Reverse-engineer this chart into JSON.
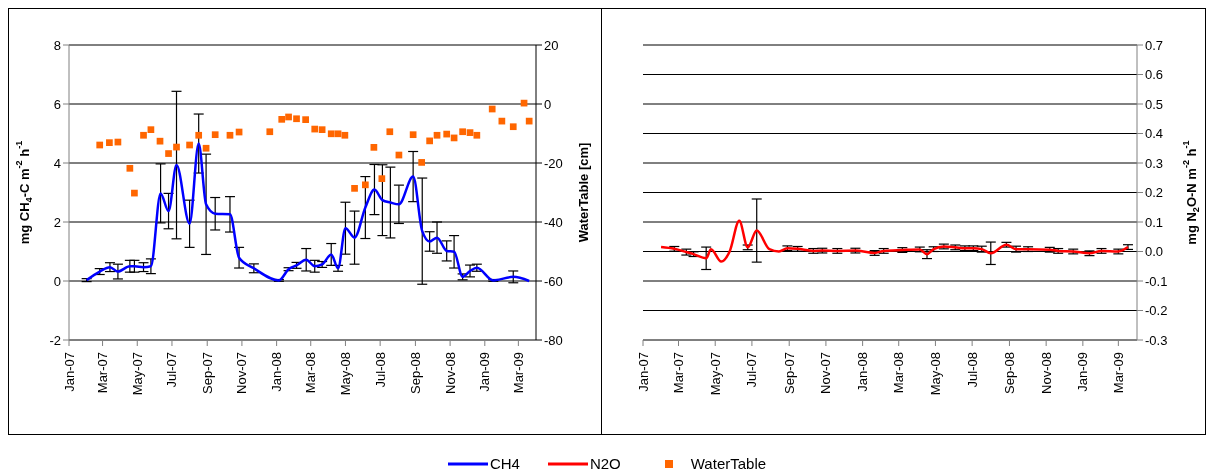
{
  "chart_data": [
    {
      "type": "line",
      "ylabel": "mg CH$_{4}$-C m$^{-2}$ h$^{-1}$",
      "y2label": "WaterTable [cm]",
      "xlim": [
        "2007-01-01",
        "2009-04-01"
      ],
      "xticks": [
        {
          "value": "2007-01-01",
          "label": "Jan-07"
        },
        {
          "value": "2007-03-01",
          "label": "Mar-07"
        },
        {
          "value": "2007-05-01",
          "label": "May-07"
        },
        {
          "value": "2007-07-01",
          "label": "Jul-07"
        },
        {
          "value": "2007-09-01",
          "label": "Sep-07"
        },
        {
          "value": "2007-11-01",
          "label": "Nov-07"
        },
        {
          "value": "2008-01-01",
          "label": "Jan-08"
        },
        {
          "value": "2008-03-01",
          "label": "Mar-08"
        },
        {
          "value": "2008-05-01",
          "label": "May-08"
        },
        {
          "value": "2008-07-01",
          "label": "Jul-08"
        },
        {
          "value": "2008-09-01",
          "label": "Sep-08"
        },
        {
          "value": "2008-11-01",
          "label": "Nov-08"
        },
        {
          "value": "2009-01-01",
          "label": "Jan-09"
        },
        {
          "value": "2009-03-01",
          "label": "Mar-09"
        }
      ],
      "ylim": [
        -2,
        8
      ],
      "yticks": [
        -2,
        0,
        2,
        4,
        6,
        8
      ],
      "y2lim": [
        -80,
        20
      ],
      "y2ticks": [
        -80,
        -60,
        -40,
        -20,
        0,
        20
      ],
      "grid": "y",
      "legend": "bottom",
      "series": [
        {
          "name": "CH4",
          "type": "line",
          "color": "#0000ff",
          "marker": "none",
          "x": [
            "2007-02-01",
            "2007-02-24",
            "2007-03-14",
            "2007-03-28",
            "2007-04-18",
            "2007-04-26",
            "2007-05-12",
            "2007-05-25",
            "2007-06-11",
            "2007-06-25",
            "2007-07-09",
            "2007-08-01",
            "2007-08-17",
            "2007-08-30",
            "2007-09-15",
            "2007-10-11",
            "2007-10-27",
            "2007-11-22",
            "2008-01-05",
            "2008-01-22",
            "2008-02-05",
            "2008-02-22",
            "2008-03-08",
            "2008-03-21",
            "2008-04-06",
            "2008-04-18",
            "2008-05-01",
            "2008-05-17",
            "2008-06-05",
            "2008-06-21",
            "2008-07-05",
            "2008-07-19",
            "2008-08-03",
            "2008-08-28",
            "2008-09-13",
            "2008-09-26",
            "2008-10-09",
            "2008-10-26",
            "2008-11-08",
            "2008-11-23",
            "2008-12-06",
            "2008-12-18",
            "2009-01-16",
            "2009-02-20",
            "2009-03-20"
          ],
          "values": [
            0.03,
            0.32,
            0.47,
            0.32,
            0.5,
            0.5,
            0.47,
            0.5,
            2.97,
            2.37,
            3.93,
            1.94,
            4.66,
            2.6,
            2.28,
            2.26,
            0.79,
            0.43,
            0.02,
            0.4,
            0.53,
            0.72,
            0.5,
            0.56,
            0.9,
            0.43,
            1.79,
            1.47,
            2.49,
            3.1,
            2.74,
            2.66,
            2.6,
            3.54,
            1.69,
            1.34,
            1.47,
            1.02,
            0.99,
            0.14,
            0.34,
            0.45,
            0.02,
            0.14,
            0
          ],
          "errors": [
            0.05,
            0.1,
            0.15,
            0.25,
            0.2,
            0.2,
            0.15,
            0.25,
            1.0,
            0.6,
            2.5,
            0.8,
            1.0,
            1.7,
            0.55,
            0.6,
            0.35,
            0.15,
            0.03,
            0.05,
            0.1,
            0.38,
            0.2,
            0.1,
            0.37,
            0.1,
            0.88,
            0.9,
            1.05,
            0.85,
            1.2,
            1.2,
            0.65,
            0.85,
            1.8,
            0.33,
            0.53,
            0.34,
            0.55,
            0.1,
            0.2,
            0.12,
            0.03,
            0.2,
            null
          ]
        },
        {
          "name": "WaterTable",
          "type": "scatter",
          "axis": "y2",
          "color": "#ff6600",
          "marker": "square",
          "x": [
            "2007-02-24",
            "2007-03-13",
            "2007-03-28",
            "2007-04-18",
            "2007-04-26",
            "2007-05-12",
            "2007-05-25",
            "2007-06-10",
            "2007-06-25",
            "2007-07-09",
            "2007-08-01",
            "2007-08-17",
            "2007-08-30",
            "2007-09-15",
            "2007-10-11",
            "2007-10-27",
            "2007-12-20",
            "2008-01-10",
            "2008-01-22",
            "2008-02-05",
            "2008-02-21",
            "2008-03-08",
            "2008-03-21",
            "2008-04-06",
            "2008-04-18",
            "2008-04-30",
            "2008-05-17",
            "2008-06-05",
            "2008-06-20",
            "2008-07-04",
            "2008-07-18",
            "2008-08-03",
            "2008-08-28",
            "2008-09-12",
            "2008-09-26",
            "2008-10-09",
            "2008-10-26",
            "2008-11-08",
            "2008-11-23",
            "2008-12-06",
            "2008-12-18",
            "2009-01-14",
            "2009-01-31",
            "2009-02-20",
            "2009-03-11",
            "2009-03-20"
          ],
          "values": [
            -13.9,
            -13.1,
            -12.9,
            -21.8,
            -30.2,
            -10.6,
            -8.7,
            -12.6,
            -16.8,
            -14.6,
            -13.9,
            -10.6,
            -15.0,
            -10.4,
            -10.6,
            -9.5,
            -9.4,
            -5.2,
            -4.4,
            -5.0,
            -5.3,
            -8.5,
            -8.7,
            -10.1,
            -10.1,
            -10.6,
            -28.6,
            -27.4,
            -14.7,
            -25.3,
            -9.4,
            -17.3,
            -10.4,
            -19.8,
            -12.5,
            -10.6,
            -10.2,
            -11.5,
            -9.4,
            -9.7,
            -10.6,
            -1.7,
            -5.8,
            -7.7,
            0.3,
            -5.8
          ]
        }
      ]
    },
    {
      "type": "line",
      "ylabel": "mg N$_{2}$O-N m$^{-2}$ h$^{-1}$",
      "xlim": [
        "2007-01-01",
        "2009-04-01"
      ],
      "xticks": [
        {
          "value": "2007-01-01",
          "label": "Jan-07"
        },
        {
          "value": "2007-03-01",
          "label": "Mar-07"
        },
        {
          "value": "2007-05-01",
          "label": "May-07"
        },
        {
          "value": "2007-07-01",
          "label": "Jul-07"
        },
        {
          "value": "2007-09-01",
          "label": "Sep-07"
        },
        {
          "value": "2007-11-01",
          "label": "Nov-07"
        },
        {
          "value": "2008-01-01",
          "label": "Jan-08"
        },
        {
          "value": "2008-03-01",
          "label": "Mar-08"
        },
        {
          "value": "2008-05-01",
          "label": "May-08"
        },
        {
          "value": "2008-07-01",
          "label": "Jul-08"
        },
        {
          "value": "2008-09-01",
          "label": "Sep-08"
        },
        {
          "value": "2008-11-01",
          "label": "Nov-08"
        },
        {
          "value": "2009-01-01",
          "label": "Jan-09"
        },
        {
          "value": "2009-03-01",
          "label": "Mar-09"
        }
      ],
      "ylim": [
        -0.3,
        0.7
      ],
      "yticks": [
        {
          "value": -0.3,
          "label": "-0.3"
        },
        {
          "value": -0.2,
          "label": "-0.2"
        },
        {
          "value": -0.1,
          "label": "-0.1"
        },
        {
          "value": 0,
          "label": "0.0"
        },
        {
          "value": 0.1,
          "label": "0.1"
        },
        {
          "value": 0.2,
          "label": "0.2"
        },
        {
          "value": 0.3,
          "label": "0.3"
        },
        {
          "value": 0.4,
          "label": "0.4"
        },
        {
          "value": 0.5,
          "label": "0.5"
        },
        {
          "value": 0.6,
          "label": "0.6"
        },
        {
          "value": 0.7,
          "label": "0.7"
        }
      ],
      "grid": "y",
      "legend": "bottom",
      "series": [
        {
          "name": "N2O",
          "type": "line",
          "color": "#ff0000",
          "marker": "none",
          "x": [
            "2007-01-31",
            "2007-02-22",
            "2007-03-14",
            "2007-03-26",
            "2007-04-16",
            "2007-04-24",
            "2007-05-11",
            "2007-05-25",
            "2007-06-10",
            "2007-06-24",
            "2007-07-09",
            "2007-07-30",
            "2007-08-15",
            "2007-08-29",
            "2007-09-15",
            "2007-10-11",
            "2007-10-26",
            "2007-11-20",
            "2007-12-20",
            "2008-01-21",
            "2008-02-05",
            "2008-03-07",
            "2008-04-05",
            "2008-04-17",
            "2008-04-28",
            "2008-05-15",
            "2008-06-03",
            "2008-06-19",
            "2008-07-03",
            "2008-07-17",
            "2008-08-01",
            "2008-08-27",
            "2008-09-12",
            "2008-10-02",
            "2008-11-07",
            "2008-11-21",
            "2008-12-16",
            "2009-01-12",
            "2009-02-01",
            "2009-03-01",
            "2009-03-17"
          ],
          "values": [
            0.015,
            0.009,
            -0.002,
            -0.009,
            -0.023,
            0.008,
            -0.034,
            0.0,
            0.104,
            0.014,
            0.071,
            0.008,
            0.0,
            0.011,
            0.009,
            0.002,
            0.003,
            0.002,
            0.003,
            -0.005,
            0.002,
            0.005,
            0.007,
            -0.009,
            0.008,
            0.017,
            0.014,
            0.011,
            0.011,
            0.008,
            -0.006,
            0.023,
            0.008,
            0.008,
            0.006,
            0.002,
            0.0,
            -0.006,
            0.002,
            0.0,
            0.015
          ],
          "errors": [
            null,
            0.008,
            0.01,
            0.008,
            0.038,
            null,
            null,
            null,
            null,
            0.008,
            0.107,
            null,
            null,
            0.008,
            0.008,
            0.008,
            0.008,
            0.008,
            0.008,
            0.008,
            0.008,
            0.008,
            0.008,
            0.015,
            0.008,
            0.008,
            0.008,
            0.008,
            0.008,
            0.01,
            0.038,
            0.008,
            0.01,
            0.008,
            0.008,
            0.008,
            0.008,
            0.008,
            0.008,
            0.008,
            0.008
          ]
        }
      ]
    }
  ]
}
